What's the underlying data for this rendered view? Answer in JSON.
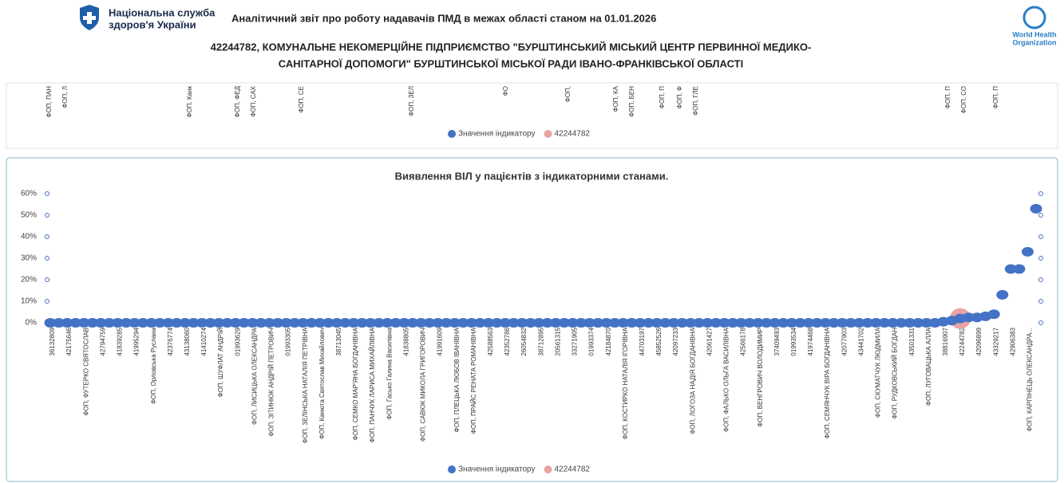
{
  "header": {
    "org_name": [
      "Національна служба",
      "здоров'я України"
    ],
    "title": "Аналітичний звіт про роботу надавачів ПМД в межах області станом на 01.01.2026",
    "subtitle": [
      "42244782, КОМУНАЛЬНЕ НЕКОМЕРЦІЙНЕ ПІДПРИЄМСТВО \"БУРШТИНСЬКИЙ МІСЬКИЙ ЦЕНТР ПЕРВИННОЇ МЕДИКО-",
      "САНІТАРНОЇ ДОПОМОГИ\" БУРШТИНСЬКОЇ МІСЬКОЇ РАДИ ІВАНО-ФРАНКІВСЬКОЇ ОБЛАСТІ"
    ],
    "who": [
      "World Health",
      "Organization"
    ]
  },
  "top_panel": {
    "labels": [
      "ФОП, ПАН",
      "ФОП, Л",
      "ФОП, Канк",
      "ФОП, ФЕД",
      "ФОП, САХ",
      "ФОП, СЕ",
      "ФОП, ЗЕЛ",
      "ФО",
      "ФОП,",
      "ФОП, КА",
      "ФОП, БЕН",
      "ФОП, П",
      "ФОП, Ф",
      "ФОП, ГЛЕ",
      "ФОП, П",
      "ФОП, СО",
      "ФОП, П"
    ],
    "legend": [
      "Значення індикатору",
      "42244782"
    ]
  },
  "chart_data": {
    "type": "scatter",
    "title": "Виявлення ВІЛ у пацієнтів  з індикаторними станами.",
    "categories": [
      "36132809",
      null,
      "42175646",
      null,
      "ФОП, ФУТЕРКО СВЯТОСЛАВ",
      null,
      "42794759",
      null,
      "41839285",
      null,
      "41995294",
      null,
      "ФОП, Орловська Руслана",
      null,
      "42376774",
      null,
      "43138060",
      null,
      "41410274",
      null,
      "ФОП, ШУФЛАТ АНДРІЙ",
      null,
      "01993629",
      null,
      "ФОП, ЛИСИЦЬКА ОЛЕКСАНДРА",
      null,
      "ФОП, ЗІТИНЮК АНДРІЙ ПЕТРОВИЧ",
      null,
      "01993305",
      null,
      "ФОП, ЗЕЛІНСЬКА НАТАЛІЯ ПЕТРІВНА",
      null,
      "ФОП, Канюта Святослав Михайлович",
      null,
      "38713045",
      null,
      "ФОП, СЕМКО МАР'ЯНА БОГДАНІВНА",
      null,
      "ФОП, ПАНЧУК ЛАРИСА МИХАЙЛІВНА",
      null,
      "ФОП, Гасько Галина Василівна",
      null,
      "41838805",
      null,
      "ФОП, САВЮК МИКОЛА ГРИГОРОВИЧ",
      null,
      "41991609",
      null,
      "ФОП, ПЛЕЦЬКА ЛЮБОВ ІВАНІВНА",
      null,
      "ФОП, ПРАЙС РЕНАТА РОМАНІВНА",
      null,
      "42588563",
      null,
      "42352786",
      null,
      "26054832",
      null,
      "38712895",
      null,
      "20561315",
      null,
      "33271905",
      null,
      "01993374",
      null,
      "42184870",
      null,
      "ФОП, КОСТИРКО НАТАЛІЯ ІГОРІВНА",
      null,
      "44703197",
      null,
      "45852526",
      null,
      "42097233",
      null,
      "ФОП, ЛОГОЗА НАДІЯ БОГДАНІВНА",
      null,
      "42061427",
      null,
      "ФОП, ФАЛЬКО ОЛЬГА ВАСИЛІВНА",
      null,
      "42566178",
      null,
      "ФОП, ВЕНГРОВИЧ ВОЛОДИМИР",
      null,
      "37409493",
      null,
      "01993534",
      null,
      "41974468",
      null,
      "ФОП, СЕМЯНЧУК ВІРА БОГДАНІВНА",
      null,
      "42077903",
      null,
      "43441702",
      null,
      "ФОП, СКУМАТЧУК ЛЮДМИЛА",
      null,
      "ФОП, РУДКОВСЬКИЙ БОГДАН",
      null,
      "43501331",
      null,
      "ФОП, ЛУГОВАЦЬКА АЛЛА",
      null,
      "38816907",
      null,
      "42244782",
      null,
      "42096899",
      null,
      "43329217",
      null,
      "42906383",
      null,
      "ФОП, КАРПІНЕЦЬ ОЛЕКСАНДРА...",
      null
    ],
    "series": [
      {
        "name": "Значення індикатору",
        "color": "#4472c4",
        "values": [
          0,
          0,
          0,
          0,
          0,
          0,
          0,
          0,
          0,
          0,
          0,
          0,
          0,
          0,
          0,
          0,
          0,
          0,
          0,
          0,
          0,
          0,
          0,
          0,
          0,
          0,
          0,
          0,
          0,
          0,
          0,
          0,
          0,
          0,
          0,
          0,
          0,
          0,
          0,
          0,
          0,
          0,
          0,
          0,
          0,
          0,
          0,
          0,
          0,
          0,
          0,
          0,
          0,
          0,
          0,
          0,
          0,
          0,
          0,
          0,
          0,
          0,
          0,
          0,
          0,
          0,
          0,
          0,
          0,
          0,
          0,
          0,
          0,
          0,
          0,
          0,
          0,
          0,
          0,
          0,
          0,
          0,
          0,
          0,
          0,
          0,
          0,
          0,
          0,
          0,
          0,
          0,
          0,
          0,
          0,
          0,
          0,
          0,
          0,
          0,
          0,
          0,
          0,
          0,
          0,
          0,
          0.5,
          1,
          2,
          2.5,
          2.5,
          3,
          4,
          13,
          25,
          25,
          33,
          53
        ]
      },
      {
        "name": "42244782",
        "color": "#e8a3a3",
        "values": [
          null,
          null,
          null,
          null,
          null,
          null,
          null,
          null,
          null,
          null,
          null,
          null,
          null,
          null,
          null,
          null,
          null,
          null,
          null,
          null,
          null,
          null,
          null,
          null,
          null,
          null,
          null,
          null,
          null,
          null,
          null,
          null,
          null,
          null,
          null,
          null,
          null,
          null,
          null,
          null,
          null,
          null,
          null,
          null,
          null,
          null,
          null,
          null,
          null,
          null,
          null,
          null,
          null,
          null,
          null,
          null,
          null,
          null,
          null,
          null,
          null,
          null,
          null,
          null,
          null,
          null,
          null,
          null,
          null,
          null,
          null,
          null,
          null,
          null,
          null,
          null,
          null,
          null,
          null,
          null,
          null,
          null,
          null,
          null,
          null,
          null,
          null,
          null,
          null,
          null,
          null,
          null,
          null,
          null,
          null,
          null,
          null,
          null,
          null,
          null,
          null,
          null,
          null,
          null,
          null,
          null,
          null,
          null,
          2,
          null,
          null,
          null,
          null,
          null,
          null,
          null,
          null,
          null
        ]
      }
    ],
    "ylim": [
      0,
      60
    ],
    "yticks": [
      {
        "value": 0,
        "label": "0%"
      },
      {
        "value": 10,
        "label": "10%"
      },
      {
        "value": 20,
        "label": "20%"
      },
      {
        "value": 30,
        "label": "30%"
      },
      {
        "value": 40,
        "label": "40%"
      },
      {
        "value": 50,
        "label": "50%"
      },
      {
        "value": 60,
        "label": "60%"
      }
    ]
  }
}
